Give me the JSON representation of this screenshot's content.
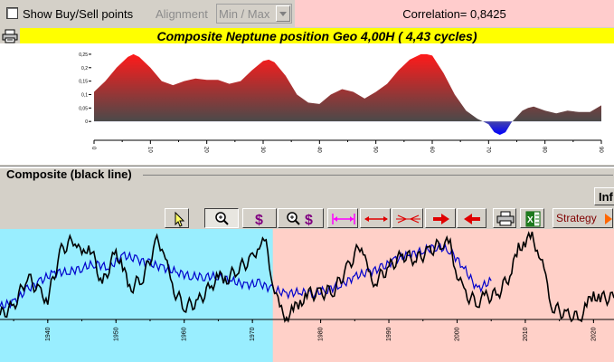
{
  "toolbar": {
    "show_buysell_label": "Show Buy/Sell points",
    "show_buysell_checked": false,
    "alignment_label": "Alignment",
    "alignment_value": "Min / Max",
    "correlation_text": "Correlation= 0,8425"
  },
  "top_chart": {
    "title": "Composite Neptune position Geo  4,00H  ( 4,43 cycles)",
    "colors": {
      "positive": "#ff1a1a",
      "positive_dark": "#4a4a4a",
      "negative": "#0000ff"
    },
    "chart_data": {
      "type": "area",
      "x": [
        0,
        2,
        4,
        6,
        7,
        8,
        10,
        12,
        14,
        16,
        18,
        20,
        22,
        24,
        26,
        28,
        30,
        31,
        32,
        34,
        36,
        38,
        40,
        42,
        44,
        46,
        48,
        50,
        52,
        54,
        56,
        58,
        59,
        60,
        62,
        64,
        66,
        68,
        70,
        71,
        72,
        73,
        74,
        76,
        77,
        78,
        80,
        82,
        84,
        86,
        88,
        90
      ],
      "values": [
        0.11,
        0.15,
        0.2,
        0.24,
        0.25,
        0.24,
        0.2,
        0.15,
        0.135,
        0.15,
        0.16,
        0.155,
        0.155,
        0.14,
        0.15,
        0.19,
        0.225,
        0.23,
        0.22,
        0.17,
        0.1,
        0.07,
        0.065,
        0.1,
        0.12,
        0.11,
        0.085,
        0.11,
        0.14,
        0.19,
        0.23,
        0.25,
        0.25,
        0.245,
        0.18,
        0.1,
        0.04,
        0.01,
        -0.01,
        -0.04,
        -0.05,
        -0.04,
        -0.005,
        0.04,
        0.05,
        0.055,
        0.04,
        0.03,
        0.04,
        0.035,
        0.035,
        0.06
      ],
      "x_ticks": [
        "0",
        "10",
        "20",
        "30",
        "40",
        "50",
        "60",
        "70",
        "80",
        "90"
      ],
      "y_ticks": [
        "0,25",
        "0,2",
        "0,15",
        "0,1",
        "0,05",
        "0"
      ],
      "xlim": [
        0,
        90
      ],
      "ylim": [
        -0.06,
        0.27
      ]
    }
  },
  "bottom_panel": {
    "section_title": "Composite (black line)",
    "info_label": "Inf",
    "strategy_label": "Strategy",
    "toolbar_icons": [
      "cursor-icon",
      "zoom-icon",
      "dollar-icon",
      "zoom-dollar-icon",
      "fit-range-icon",
      "expand-range-icon",
      "compress-range-icon",
      "scroll-right-icon",
      "scroll-left-icon",
      "printer-icon",
      "excel-icon"
    ],
    "colors": {
      "past_bg": "#99eeff",
      "future_bg": "#ffd0c8",
      "composite": "#000000",
      "price": "#0000cc"
    },
    "chart_data": {
      "type": "line",
      "x_ticks": [
        "1940",
        "1950",
        "1960",
        "1970",
        "1980",
        "1990",
        "2000",
        "2010",
        "2020"
      ],
      "xlim": [
        1933,
        2023
      ],
      "split_year": 1973,
      "series": [
        {
          "name": "Composite (black line)",
          "x": [
            1933,
            1935,
            1937,
            1939,
            1940,
            1942,
            1944,
            1945,
            1946,
            1948,
            1950,
            1951,
            1952,
            1954,
            1956,
            1957,
            1958,
            1960,
            1962,
            1964,
            1965,
            1966,
            1968,
            1970,
            1971,
            1972,
            1973,
            1974,
            1975,
            1976,
            1977,
            1978,
            1980,
            1982,
            1984,
            1986,
            1987,
            1988,
            1990,
            1992,
            1994,
            1996,
            1998,
            1999,
            2000,
            2001,
            2003,
            2004,
            2006,
            2008,
            2009,
            2010,
            2011,
            2012,
            2013,
            2014,
            2016,
            2018,
            2019,
            2020,
            2021,
            2023
          ],
          "values": [
            0.05,
            0.15,
            0.5,
            0.3,
            0.25,
            0.8,
            0.95,
            0.7,
            0.9,
            0.4,
            0.8,
            0.6,
            0.35,
            0.5,
            0.9,
            0.85,
            0.4,
            0.15,
            0.2,
            0.4,
            0.5,
            0.45,
            0.6,
            0.7,
            0.9,
            0.85,
            0.45,
            0.1,
            0.05,
            0.1,
            0.2,
            0.3,
            0.3,
            0.35,
            0.6,
            0.9,
            0.5,
            0.45,
            0.6,
            0.75,
            0.7,
            0.8,
            0.9,
            0.85,
            0.55,
            0.3,
            0.2,
            0.25,
            0.3,
            0.55,
            0.85,
            0.9,
            0.95,
            0.8,
            0.45,
            0.15,
            0.05,
            0.02,
            0.15,
            0.3,
            0.25,
            0.25
          ]
        },
        {
          "name": "",
          "x": [
            1933,
            1935,
            1937,
            1939,
            1941,
            1943,
            1945,
            1947,
            1949,
            1951,
            1953,
            1955,
            1957,
            1959,
            1961,
            1963,
            1965,
            1967,
            1969,
            1971,
            1973,
            1975,
            1977,
            1979,
            1981,
            1983,
            1985,
            1987,
            1989,
            1991,
            1993,
            1995,
            1997,
            1999,
            2001,
            2003,
            2005
          ],
          "values": [
            0.15,
            0.2,
            0.35,
            0.45,
            0.55,
            0.55,
            0.6,
            0.65,
            0.6,
            0.75,
            0.7,
            0.65,
            0.6,
            0.55,
            0.5,
            0.5,
            0.5,
            0.45,
            0.4,
            0.42,
            0.35,
            0.3,
            0.32,
            0.3,
            0.35,
            0.4,
            0.5,
            0.55,
            0.6,
            0.7,
            0.75,
            0.8,
            0.85,
            0.8,
            0.6,
            0.35,
            0.45
          ]
        }
      ]
    }
  }
}
